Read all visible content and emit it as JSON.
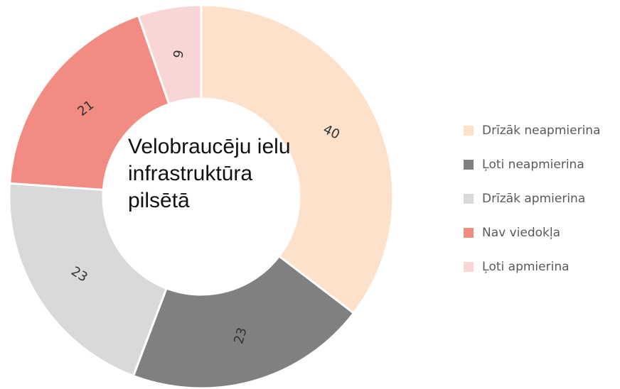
{
  "chart_data": {
    "type": "donut",
    "title": "Velobraucēju ielu infrastruktūra pilsētā",
    "categories": [
      "Drīzāk neapmierina",
      "Ļoti neapmierina",
      "Drīzāk apmierina",
      "Nav viedokļa",
      "Ļoti apmierina"
    ],
    "values": [
      40,
      23,
      23,
      21,
      6
    ],
    "colors": [
      "#fde1ca",
      "#808080",
      "#d9d9d9",
      "#f28b82",
      "#f9d5d5"
    ],
    "legend": "right"
  }
}
